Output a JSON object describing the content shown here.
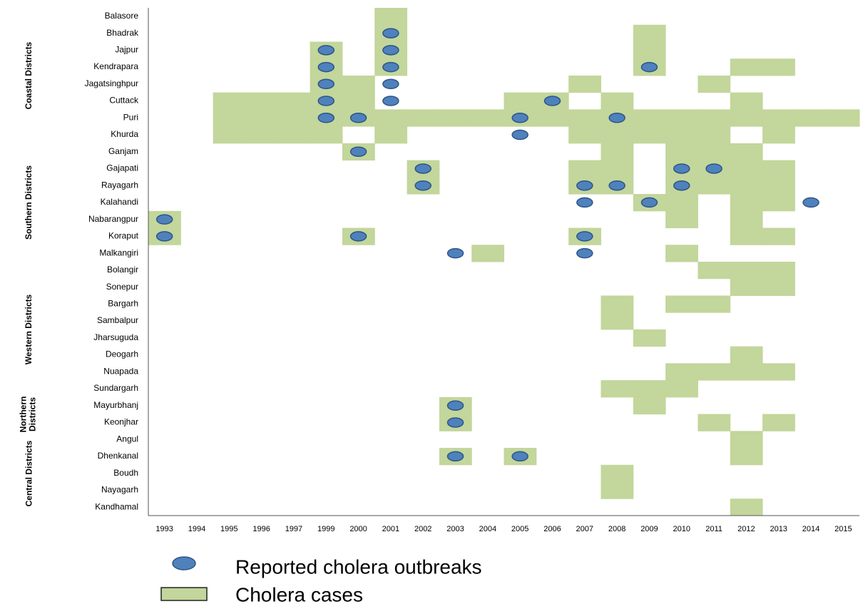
{
  "chart_data": {
    "type": "grid",
    "categories": [
      "1993",
      "1994",
      "1995",
      "1996",
      "1997",
      "1999",
      "2000",
      "2001",
      "2002",
      "2003",
      "2004",
      "2005",
      "2006",
      "2007",
      "2008",
      "2009",
      "2010",
      "2011",
      "2012",
      "2013",
      "2014",
      "2015"
    ],
    "groups": [
      {
        "name": "Coastal Districts",
        "districts": [
          {
            "name": "Balasore",
            "cases": [
              "2001"
            ],
            "outbreaks": []
          },
          {
            "name": "Bhadrak",
            "cases": [
              "2001",
              "2009"
            ],
            "outbreaks": [
              "2001"
            ]
          },
          {
            "name": "Jajpur",
            "cases": [
              "1999",
              "2001",
              "2009"
            ],
            "outbreaks": [
              "1999",
              "2001"
            ]
          },
          {
            "name": "Kendrapara",
            "cases": [
              "1999",
              "2001",
              "2009",
              "2012",
              "2013"
            ],
            "outbreaks": [
              "1999",
              "2001",
              "2009"
            ]
          },
          {
            "name": "Jagatsinghpur",
            "cases": [
              "1999",
              "2000",
              "2007",
              "2011"
            ],
            "outbreaks": [
              "1999",
              "2001"
            ]
          },
          {
            "name": "Cuttack",
            "cases": [
              "1995",
              "1996",
              "1997",
              "1999",
              "2000",
              "2005",
              "2006",
              "2008",
              "2012"
            ],
            "outbreaks": [
              "1999",
              "2001",
              "2006"
            ]
          },
          {
            "name": "Puri",
            "cases": [
              "1995",
              "1996",
              "1997",
              "1999",
              "2000",
              "2001",
              "2002",
              "2003",
              "2004",
              "2005",
              "2006",
              "2007",
              "2008",
              "2009",
              "2010",
              "2011",
              "2012",
              "2013",
              "2014",
              "2015"
            ],
            "outbreaks": [
              "1999",
              "2000",
              "2005",
              "2008"
            ]
          },
          {
            "name": "Khurda",
            "cases": [
              "1995",
              "1996",
              "1997",
              "1999",
              "2001",
              "2007",
              "2008",
              "2009",
              "2010",
              "2011",
              "2013"
            ],
            "outbreaks": [
              "2005"
            ]
          }
        ]
      },
      {
        "name": "Southern Districts",
        "districts": [
          {
            "name": "Ganjam",
            "cases": [
              "2000",
              "2008",
              "2010",
              "2011",
              "2012"
            ],
            "outbreaks": [
              "2000"
            ]
          },
          {
            "name": "Gajapati",
            "cases": [
              "2002",
              "2007",
              "2008",
              "2010",
              "2011",
              "2012",
              "2013"
            ],
            "outbreaks": [
              "2002",
              "2010",
              "2011"
            ]
          },
          {
            "name": "Rayagarh",
            "cases": [
              "2002",
              "2007",
              "2008",
              "2010",
              "2011",
              "2012",
              "2013"
            ],
            "outbreaks": [
              "2002",
              "2007",
              "2008",
              "2010"
            ]
          },
          {
            "name": "Kalahandi",
            "cases": [
              "2009",
              "2010",
              "2012",
              "2013"
            ],
            "outbreaks": [
              "2007",
              "2009",
              "2014"
            ]
          },
          {
            "name": "Nabarangpur",
            "cases": [
              "1993",
              "2010",
              "2012"
            ],
            "outbreaks": [
              "1993"
            ]
          },
          {
            "name": "Koraput",
            "cases": [
              "1993",
              "2000",
              "2007",
              "2012",
              "2013"
            ],
            "outbreaks": [
              "1993",
              "2000",
              "2007"
            ]
          },
          {
            "name": "Malkangiri",
            "cases": [
              "2004",
              "2010"
            ],
            "outbreaks": [
              "2003",
              "2007"
            ]
          }
        ]
      },
      {
        "name": "Western Districts",
        "districts": [
          {
            "name": "Bolangir",
            "cases": [
              "2011",
              "2012",
              "2013"
            ],
            "outbreaks": []
          },
          {
            "name": "Sonepur",
            "cases": [
              "2012",
              "2013"
            ],
            "outbreaks": []
          },
          {
            "name": "Bargarh",
            "cases": [
              "2008",
              "2010",
              "2011"
            ],
            "outbreaks": []
          },
          {
            "name": "Sambalpur",
            "cases": [
              "2008"
            ],
            "outbreaks": []
          },
          {
            "name": "Jharsuguda",
            "cases": [
              "2009"
            ],
            "outbreaks": []
          },
          {
            "name": "Deogarh",
            "cases": [
              "2012"
            ],
            "outbreaks": []
          },
          {
            "name": "Nuapada",
            "cases": [
              "2010",
              "2011",
              "2012",
              "2013"
            ],
            "outbreaks": []
          },
          {
            "name": "Sundargarh",
            "cases": [
              "2008",
              "2009",
              "2010"
            ],
            "outbreaks": []
          }
        ]
      },
      {
        "name": "Northern Districts",
        "districts": [
          {
            "name": "Mayurbhanj",
            "cases": [
              "2003",
              "2009"
            ],
            "outbreaks": [
              "2003"
            ]
          },
          {
            "name": "Keonjhar",
            "cases": [
              "2003",
              "2011",
              "2013"
            ],
            "outbreaks": [
              "2003"
            ]
          }
        ]
      },
      {
        "name": "Central Districts",
        "districts": [
          {
            "name": "Angul",
            "cases": [
              "2012"
            ],
            "outbreaks": []
          },
          {
            "name": "Dhenkanal",
            "cases": [
              "2003",
              "2005",
              "2012"
            ],
            "outbreaks": [
              "2003",
              "2005"
            ]
          },
          {
            "name": "Boudh",
            "cases": [
              "2008"
            ],
            "outbreaks": []
          },
          {
            "name": "Nayagarh",
            "cases": [
              "2008"
            ],
            "outbreaks": []
          },
          {
            "name": "Kandhamal",
            "cases": [
              "2012"
            ],
            "outbreaks": []
          }
        ]
      }
    ],
    "legend": [
      {
        "name": "Reported cholera outbreaks",
        "color": "#4f81bd"
      },
      {
        "name": "Cholera cases",
        "color": "#c3d69b"
      }
    ]
  }
}
